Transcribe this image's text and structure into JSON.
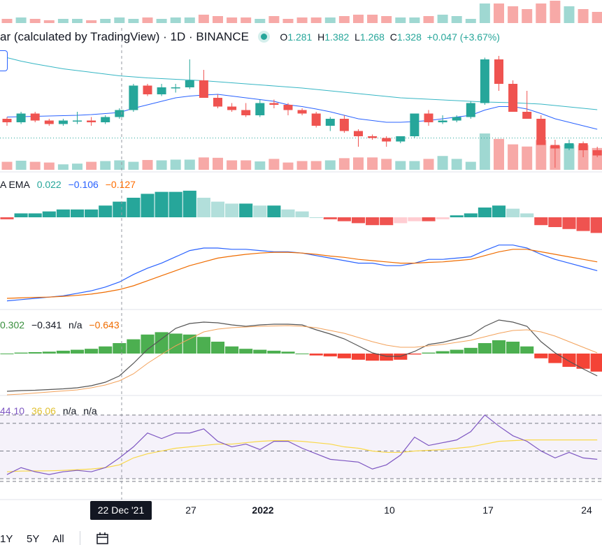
{
  "main_legend": {
    "title": "ar (calculated by TradingView)",
    "separator": "·",
    "interval": "1D",
    "exchange": "BINANCE",
    "open_label": "O",
    "open": "1.281",
    "high_label": "H",
    "high": "1.382",
    "low_label": "L",
    "low": "1.268",
    "close_label": "C",
    "close": "1.328",
    "change": "+0.047 (+3.67%)"
  },
  "macd_legend": {
    "label": "A EMA",
    "hist": "0.022",
    "macd": "−0.106",
    "signal": "−0.127",
    "colors": {
      "hist": "#26a69a",
      "macd": "#2962ff",
      "signal": "#ff6d00"
    }
  },
  "osc_legend": {
    "v1": "0.302",
    "v2": "−0.341",
    "v3": "n/a",
    "v4": "−0.643",
    "colors": {
      "v1": "#388e3c",
      "v2": "#131722",
      "v4": "#ef6c00"
    }
  },
  "rsi_legend": {
    "rsi": "44.10",
    "ma": "36.06",
    "v3": "n/a",
    "v4": "n/a",
    "colors": {
      "rsi": "#7e57c2",
      "ma": "#f9d849"
    }
  },
  "x_axis": {
    "labels": [
      {
        "text": "27",
        "bold": false
      },
      {
        "text": "2022",
        "bold": true
      },
      {
        "text": "10",
        "bold": false
      },
      {
        "text": "17",
        "bold": false
      },
      {
        "text": "24",
        "bold": false
      }
    ],
    "crosshair_label": "22 Dec '21"
  },
  "range_buttons": [
    "1Y",
    "5Y",
    "All"
  ],
  "icons": {
    "date_range": "calendar-icon"
  },
  "colors": {
    "up": "#26a69a",
    "down": "#ef5350",
    "ma_slow": "#36b6c4",
    "ma_fast": "#2962ff",
    "rsi_band": "#7e57c2"
  },
  "chart_data": {
    "type": "candlestick",
    "interval": "1D",
    "x": [
      "12-13",
      "12-14",
      "12-15",
      "12-16",
      "12-17",
      "12-18",
      "12-19",
      "12-20",
      "12-21",
      "12-22",
      "12-23",
      "12-24",
      "12-25",
      "12-26",
      "12-27",
      "12-28",
      "12-29",
      "12-30",
      "12-31",
      "01-01",
      "01-02",
      "01-03",
      "01-04",
      "01-05",
      "01-06",
      "01-07",
      "01-08",
      "01-09",
      "01-10",
      "01-11",
      "01-12",
      "01-13",
      "01-14",
      "01-15",
      "01-16",
      "01-17",
      "01-18",
      "01-19",
      "01-20",
      "01-21",
      "01-22",
      "01-23",
      "01-24"
    ],
    "ohlc": [
      [
        1.12,
        1.125,
        1.1,
        1.11
      ],
      [
        1.11,
        1.14,
        1.105,
        1.135
      ],
      [
        1.135,
        1.14,
        1.11,
        1.115
      ],
      [
        1.115,
        1.12,
        1.1,
        1.105
      ],
      [
        1.105,
        1.12,
        1.1,
        1.115
      ],
      [
        1.115,
        1.14,
        1.105,
        1.115
      ],
      [
        1.115,
        1.125,
        1.1,
        1.11
      ],
      [
        1.11,
        1.13,
        1.105,
        1.125
      ],
      [
        1.125,
        1.15,
        1.12,
        1.145
      ],
      [
        1.145,
        1.22,
        1.14,
        1.215
      ],
      [
        1.215,
        1.22,
        1.185,
        1.19
      ],
      [
        1.19,
        1.22,
        1.185,
        1.21
      ],
      [
        1.21,
        1.22,
        1.195,
        1.21
      ],
      [
        1.21,
        1.29,
        1.205,
        1.23
      ],
      [
        1.23,
        1.26,
        1.18,
        1.18
      ],
      [
        1.18,
        1.19,
        1.15,
        1.155
      ],
      [
        1.155,
        1.165,
        1.14,
        1.145
      ],
      [
        1.145,
        1.165,
        1.125,
        1.13
      ],
      [
        1.13,
        1.175,
        1.125,
        1.165
      ],
      [
        1.165,
        1.175,
        1.15,
        1.16
      ],
      [
        1.16,
        1.165,
        1.13,
        1.145
      ],
      [
        1.145,
        1.15,
        1.13,
        1.135
      ],
      [
        1.135,
        1.14,
        1.095,
        1.1
      ],
      [
        1.1,
        1.125,
        1.085,
        1.12
      ],
      [
        1.12,
        1.13,
        1.08,
        1.085
      ],
      [
        1.085,
        1.09,
        1.04,
        1.07
      ],
      [
        1.07,
        1.075,
        1.06,
        1.065
      ],
      [
        1.065,
        1.07,
        1.04,
        1.055
      ],
      [
        1.055,
        1.07,
        1.05,
        1.07
      ],
      [
        1.07,
        1.135,
        1.065,
        1.135
      ],
      [
        1.135,
        1.145,
        1.1,
        1.11
      ],
      [
        1.11,
        1.13,
        1.105,
        1.115
      ],
      [
        1.115,
        1.13,
        1.11,
        1.125
      ],
      [
        1.125,
        1.17,
        1.12,
        1.165
      ],
      [
        1.165,
        1.295,
        1.16,
        1.29
      ],
      [
        1.29,
        1.3,
        1.2,
        1.22
      ],
      [
        1.22,
        1.23,
        1.14,
        1.14
      ],
      [
        1.14,
        1.2,
        1.12,
        1.12
      ],
      [
        1.12,
        1.13,
        1.045,
        1.045
      ],
      [
        1.045,
        1.06,
        0.98,
        1.035
      ],
      [
        1.035,
        1.06,
        1.03,
        1.05
      ],
      [
        1.05,
        1.055,
        1.01,
        1.03
      ],
      [
        1.03,
        1.04,
        1.01,
        1.015
      ]
    ],
    "volume": [
      22,
      25,
      22,
      20,
      15,
      17,
      22,
      24,
      26,
      22,
      27,
      26,
      28,
      28,
      34,
      33,
      26,
      26,
      23,
      30,
      20,
      24,
      24,
      26,
      32,
      34,
      34,
      30,
      24,
      24,
      30,
      38,
      30,
      22,
      100,
      85,
      70,
      64,
      82,
      66,
      70,
      68,
      60
    ],
    "macd_hist": [
      -0.005,
      0.01,
      0.01,
      0.015,
      0.02,
      0.02,
      0.02,
      0.03,
      0.04,
      0.05,
      0.06,
      0.065,
      0.065,
      0.068,
      0.05,
      0.04,
      0.035,
      0.035,
      0.03,
      0.03,
      0.02,
      0.015,
      0.0,
      -0.005,
      -0.01,
      -0.015,
      -0.02,
      -0.02,
      -0.015,
      -0.01,
      -0.01,
      -0.005,
      0.005,
      0.01,
      0.025,
      0.03,
      0.022,
      0.01,
      -0.02,
      -0.025,
      -0.03,
      -0.035,
      -0.04
    ],
    "macd": [
      -0.21,
      -0.205,
      -0.2,
      -0.195,
      -0.19,
      -0.18,
      -0.17,
      -0.155,
      -0.135,
      -0.105,
      -0.08,
      -0.06,
      -0.035,
      -0.01,
      0.0,
      0.0,
      -0.005,
      -0.005,
      -0.01,
      -0.015,
      -0.015,
      -0.02,
      -0.03,
      -0.04,
      -0.05,
      -0.06,
      -0.06,
      -0.07,
      -0.07,
      -0.06,
      -0.045,
      -0.045,
      -0.04,
      -0.035,
      -0.01,
      0.012,
      0.012,
      0.0,
      -0.025,
      -0.045,
      -0.06,
      -0.075,
      -0.09
    ],
    "signal": [
      -0.2,
      -0.198,
      -0.196,
      -0.195,
      -0.192,
      -0.188,
      -0.183,
      -0.175,
      -0.165,
      -0.15,
      -0.13,
      -0.11,
      -0.09,
      -0.07,
      -0.055,
      -0.04,
      -0.032,
      -0.025,
      -0.02,
      -0.017,
      -0.017,
      -0.02,
      -0.025,
      -0.032,
      -0.037,
      -0.045,
      -0.05,
      -0.055,
      -0.06,
      -0.06,
      -0.057,
      -0.055,
      -0.05,
      -0.045,
      -0.03,
      -0.015,
      -0.005,
      -0.005,
      -0.015,
      -0.025,
      -0.035,
      -0.045,
      -0.055
    ],
    "osc_hist": [
      0.0,
      0.02,
      0.03,
      0.04,
      0.06,
      0.08,
      0.1,
      0.15,
      0.22,
      0.3,
      0.4,
      0.45,
      0.42,
      0.4,
      0.35,
      0.25,
      0.15,
      0.1,
      0.08,
      0.06,
      0.04,
      0.0,
      -0.04,
      -0.06,
      -0.1,
      -0.13,
      -0.15,
      -0.15,
      -0.13,
      -0.02,
      0.02,
      0.05,
      0.08,
      0.12,
      0.22,
      0.28,
      0.25,
      0.15,
      -0.1,
      -0.2,
      -0.28,
      -0.32,
      -0.38
    ],
    "osc_line": [
      -0.55,
      -0.54,
      -0.535,
      -0.525,
      -0.515,
      -0.5,
      -0.47,
      -0.42,
      -0.33,
      -0.15,
      0.05,
      0.2,
      0.35,
      0.42,
      0.44,
      0.43,
      0.4,
      0.38,
      0.4,
      0.41,
      0.41,
      0.4,
      0.33,
      0.27,
      0.2,
      0.1,
      0.0,
      -0.05,
      -0.05,
      0.02,
      0.12,
      0.15,
      0.2,
      0.25,
      0.38,
      0.47,
      0.44,
      0.38,
      0.16,
      0.0,
      -0.12,
      -0.23,
      -0.33
    ],
    "osc_signal": [
      -0.6,
      -0.59,
      -0.575,
      -0.56,
      -0.545,
      -0.53,
      -0.5,
      -0.46,
      -0.4,
      -0.3,
      -0.15,
      -0.02,
      0.1,
      0.2,
      0.3,
      0.34,
      0.36,
      0.37,
      0.38,
      0.385,
      0.39,
      0.38,
      0.36,
      0.32,
      0.28,
      0.22,
      0.16,
      0.11,
      0.08,
      0.08,
      0.1,
      0.12,
      0.15,
      0.18,
      0.23,
      0.28,
      0.32,
      0.33,
      0.3,
      0.24,
      0.16,
      0.08,
      0.0
    ],
    "rsi": [
      33,
      38,
      35,
      33,
      35,
      36,
      35,
      38,
      45,
      53,
      63,
      59,
      63,
      63,
      66,
      57,
      53,
      55,
      51,
      57,
      57,
      52,
      48,
      44,
      43,
      42,
      37,
      40,
      47,
      60,
      54,
      56,
      58,
      64,
      76,
      68,
      61,
      57,
      50,
      45,
      49,
      45,
      44
    ],
    "rsi_ma": [
      35,
      35.5,
      35.6,
      35.7,
      36,
      36.5,
      37,
      38,
      40,
      45,
      48,
      50,
      52,
      53,
      54,
      55,
      55,
      56,
      57,
      57.5,
      57.5,
      57,
      56,
      55,
      53,
      52,
      50,
      49,
      49,
      50,
      50.5,
      51,
      52,
      53,
      55,
      57,
      57.5,
      58,
      58,
      58,
      58,
      58,
      58
    ],
    "rsi_levels": [
      30,
      50,
      70
    ],
    "ma_fast": [
      1.125,
      1.126,
      1.127,
      1.128,
      1.129,
      1.13,
      1.132,
      1.135,
      1.138,
      1.15,
      1.16,
      1.17,
      1.18,
      1.185,
      1.188,
      1.19,
      1.185,
      1.18,
      1.175,
      1.17,
      1.16,
      1.155,
      1.148,
      1.14,
      1.13,
      1.12,
      1.115,
      1.11,
      1.11,
      1.112,
      1.115,
      1.12,
      1.125,
      1.13,
      1.145,
      1.155,
      1.155,
      1.148,
      1.135,
      1.12,
      1.11,
      1.1,
      1.09
    ],
    "ma_slow": [
      1.295,
      1.285,
      1.277,
      1.27,
      1.263,
      1.258,
      1.253,
      1.248,
      1.243,
      1.24,
      1.237,
      1.235,
      1.233,
      1.231,
      1.229,
      1.226,
      1.223,
      1.22,
      1.217,
      1.214,
      1.211,
      1.208,
      1.204,
      1.2,
      1.196,
      1.192,
      1.188,
      1.184,
      1.18,
      1.178,
      1.176,
      1.174,
      1.172,
      1.17,
      1.168,
      1.167,
      1.166,
      1.164,
      1.162,
      1.158,
      1.154,
      1.15,
      1.146
    ]
  }
}
